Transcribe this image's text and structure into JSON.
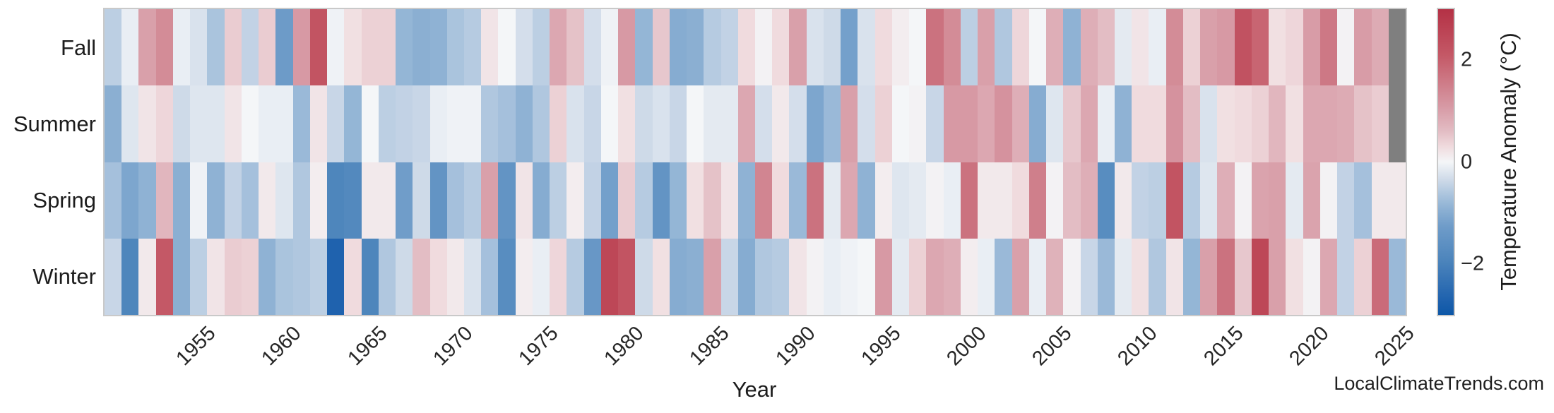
{
  "figure": {
    "watermark": "LocalClimateTrends.com"
  },
  "chart_data": {
    "type": "heatmap",
    "title": "",
    "x_label": "Year",
    "y_label": "",
    "rows": [
      "Fall",
      "Summer",
      "Spring",
      "Winter"
    ],
    "year_start": 1950,
    "year_end": 2025,
    "x_tick_years": [
      1955,
      1960,
      1965,
      1970,
      1975,
      1980,
      1985,
      1990,
      1995,
      2000,
      2005,
      2010,
      2015,
      2020,
      2025
    ],
    "x_tick_labels": [
      "1955",
      "1960",
      "1965",
      "1970",
      "1975",
      "1980",
      "1985",
      "1990",
      "1995",
      "2000",
      "2005",
      "2010",
      "2015",
      "2020",
      "2025"
    ],
    "note": "values are temperature anomalies in deg C estimated from cell colors; null = missing data (gray cell)",
    "series": [
      {
        "name": "Fall",
        "values": [
          -0.5,
          -0.1,
          1.0,
          1.3,
          -0.1,
          -0.25,
          -0.65,
          0.45,
          -0.45,
          0.45,
          -1.3,
          1.1,
          2.2,
          -0.05,
          0.25,
          0.4,
          0.4,
          -0.85,
          -0.95,
          -0.9,
          -0.65,
          -0.55,
          0.2,
          0.0,
          -0.3,
          -0.5,
          0.9,
          0.55,
          -0.3,
          -0.05,
          1.1,
          -0.85,
          0.5,
          -1.0,
          -0.95,
          -0.55,
          -0.45,
          0.3,
          0.05,
          0.3,
          1.0,
          -0.25,
          -0.35,
          -1.2,
          -0.25,
          0.3,
          0.1,
          0.0,
          1.7,
          1.3,
          -0.5,
          1.0,
          -0.6,
          0.35,
          0.0,
          0.8,
          -0.9,
          0.8,
          0.6,
          -0.15,
          0.2,
          -0.1,
          1.3,
          0.4,
          1.0,
          1.1,
          2.25,
          1.9,
          0.25,
          0.35,
          1.05,
          1.6,
          0.05,
          1.05,
          0.85,
          null
        ]
      },
      {
        "name": "Summer",
        "values": [
          -0.95,
          -0.2,
          0.2,
          0.35,
          -0.35,
          -0.2,
          -0.2,
          0.2,
          0.0,
          -0.1,
          -0.1,
          -0.8,
          0.2,
          -0.4,
          -0.85,
          0.0,
          -0.5,
          -0.45,
          -0.4,
          -0.1,
          -0.05,
          -0.05,
          -0.6,
          -0.7,
          -0.9,
          -0.6,
          0.4,
          -0.25,
          -0.4,
          0.0,
          0.25,
          -0.35,
          -0.25,
          -0.4,
          0.0,
          -0.15,
          -0.15,
          0.9,
          -0.3,
          0.15,
          -0.3,
          -1.1,
          -0.8,
          1.0,
          -0.3,
          0.4,
          0.0,
          0.05,
          -0.4,
          1.1,
          1.1,
          0.9,
          1.2,
          0.8,
          -1.0,
          -0.2,
          0.5,
          0.9,
          -0.1,
          -0.9,
          0.3,
          0.3,
          1.2,
          0.6,
          -0.25,
          0.25,
          0.3,
          0.4,
          0.7,
          0.25,
          0.9,
          0.9,
          0.85,
          0.55,
          0.45,
          null
        ]
      },
      {
        "name": "Spring",
        "values": [
          -0.7,
          -1.1,
          -0.9,
          0.7,
          -0.95,
          -0.05,
          -0.9,
          -0.45,
          -0.7,
          0.15,
          -0.2,
          -0.6,
          0.1,
          -1.9,
          -1.8,
          0.15,
          0.15,
          -1.25,
          -0.35,
          -1.5,
          -0.7,
          -0.55,
          1.0,
          -1.5,
          0.2,
          -1.0,
          -0.5,
          0.1,
          -0.45,
          -1.2,
          0.45,
          -0.55,
          -1.5,
          -0.85,
          0.25,
          0.55,
          0.2,
          -0.9,
          1.4,
          0.3,
          -0.8,
          1.7,
          -0.15,
          0.9,
          -0.9,
          0.1,
          -0.2,
          -0.15,
          0.05,
          -0.1,
          1.7,
          0.15,
          0.15,
          0.3,
          1.5,
          0.05,
          0.6,
          0.8,
          -1.7,
          0.15,
          -0.45,
          -0.5,
          2.2,
          -0.55,
          -0.2,
          0.8,
          0.05,
          0.95,
          1.0,
          -0.15,
          0.95,
          0.05,
          -0.45,
          -0.7,
          0.15,
          0.15
        ]
      },
      {
        "name": "Winter",
        "values": [
          -0.4,
          -1.9,
          0.15,
          2.1,
          -0.95,
          -0.5,
          0.2,
          0.45,
          0.4,
          -0.9,
          -0.65,
          -0.6,
          -0.5,
          -2.7,
          0.3,
          -1.9,
          -0.6,
          -0.35,
          0.6,
          0.3,
          0.15,
          -0.25,
          -0.7,
          -1.7,
          0.1,
          -0.1,
          0.35,
          -0.55,
          -1.4,
          2.5,
          2.2,
          -0.35,
          0.25,
          -1.0,
          -0.95,
          1.0,
          -0.4,
          -1.0,
          -0.6,
          -0.55,
          0.2,
          0.05,
          -0.1,
          -0.05,
          0.0,
          1.1,
          -0.15,
          0.4,
          0.9,
          0.8,
          0.1,
          -0.1,
          -0.8,
          1.0,
          -0.1,
          0.75,
          0.05,
          -0.4,
          -0.8,
          -0.15,
          0.25,
          -0.6,
          0.2,
          -0.85,
          1.0,
          1.7,
          0.5,
          2.5,
          1.0,
          0.25,
          0.05,
          0.9,
          -0.45,
          0.4,
          1.8,
          -0.8
        ]
      }
    ],
    "colorbar": {
      "title": "Temperature Anomaly (°C)",
      "vmin": -3,
      "vmax": 3,
      "ticks": [
        {
          "label": "2",
          "value": 2
        },
        {
          "label": "0",
          "value": 0
        },
        {
          "label": "−2",
          "value": -2
        }
      ]
    },
    "colors": {
      "nan_cell": "#7f7f7f",
      "frame": "#c9c9c9",
      "text": "#1c1c1c",
      "stops": [
        [
          0.0,
          "#0d57a7"
        ],
        [
          0.05,
          "#1f62ae"
        ],
        [
          0.18,
          "#4d85bc"
        ],
        [
          0.29,
          "#6f9cc9"
        ],
        [
          0.35,
          "#8fb2d4"
        ],
        [
          0.39,
          "#a9c3dd"
        ],
        [
          0.44,
          "#cdd9e8"
        ],
        [
          0.5,
          "#f4f6f8"
        ],
        [
          0.55,
          "#f0dbde"
        ],
        [
          0.6,
          "#e3bdc4"
        ],
        [
          0.68,
          "#d79aa5"
        ],
        [
          0.85,
          "#c45866"
        ],
        [
          1.0,
          "#b43145"
        ]
      ]
    },
    "layout": {
      "grid": false,
      "legend": false,
      "colorbar_position": "right"
    }
  }
}
